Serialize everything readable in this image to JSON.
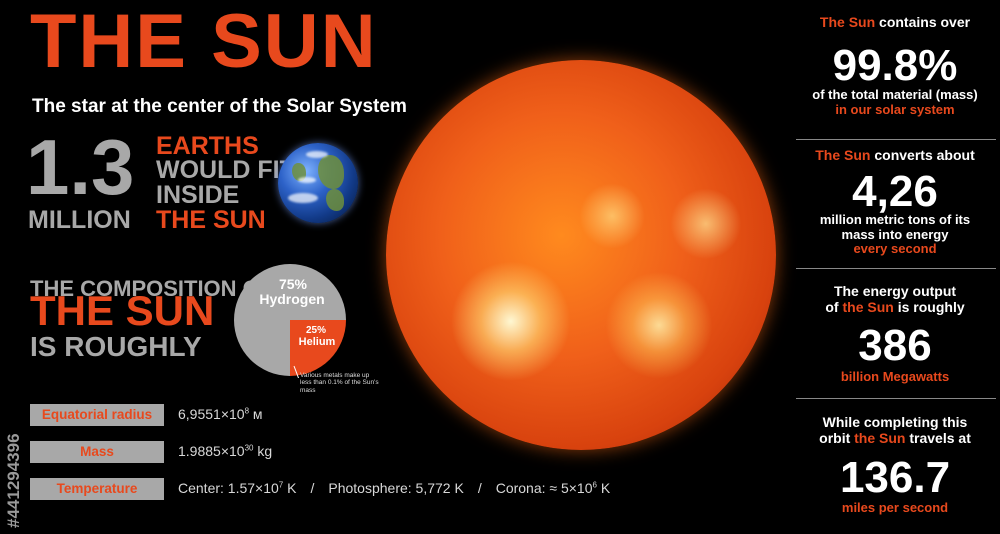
{
  "title": "THE SUN",
  "subtitle": "The star at the center of the Solar System",
  "earths": {
    "number": "1.3",
    "million": "MILLION",
    "line1": "EARTHS",
    "line2": "WOULD FIT",
    "line3": "INSIDE",
    "line4": "THE SUN"
  },
  "composition": {
    "line1": "THE COMPOSITION OF",
    "line2": "THE SUN",
    "line3": "IS ROUGHLY",
    "hydrogen_pct": "75%",
    "hydrogen_label": "Hydrogen",
    "helium_pct": "25%",
    "helium_label": "Helium",
    "hydrogen_fraction": 0.75,
    "helium_fraction": 0.25,
    "metals_note": "Various metals make up less than 0.1% of the Sun's mass"
  },
  "properties": [
    {
      "label": "Equatorial radius",
      "value_base": "6,9551×10",
      "value_exp": "8",
      "value_unit": " м"
    },
    {
      "label": "Mass",
      "value_base": "1.9885×10",
      "value_exp": "30",
      "value_unit": " kg"
    },
    {
      "label": "Temperature",
      "center_base": "Center: 1.57×10",
      "center_exp": "7",
      "center_unit": " K",
      "separator": "/",
      "photosphere": "Photosphere: 5,772 K",
      "corona_base": "Corona: ≈ 5×10",
      "corona_exp": "6",
      "corona_unit": " K"
    }
  ],
  "facts": {
    "mass_share": {
      "subject": "The Sun",
      "intro": " contains over",
      "value": "99.8%",
      "desc1": "of the total material (mass)",
      "desc2": "in our solar system"
    },
    "conversion": {
      "subject": "The Sun",
      "intro": " converts about",
      "value": "4,26",
      "desc1": "million metric tons of its",
      "desc2": "mass into energy",
      "desc3": "every second"
    },
    "output": {
      "intro1": "The energy output",
      "intro2a": "of ",
      "subject": "the Sun",
      "intro2b": " is roughly",
      "value": "386",
      "unit": "billion Megawatts"
    },
    "orbit": {
      "intro1": "While completing this",
      "intro2a": "orbit ",
      "subject": "the Sun",
      "intro2b": " travels at",
      "value": "136.7",
      "unit": "miles per second"
    }
  },
  "watermark_id": "#441294396",
  "colors": {
    "accent": "#e8491d",
    "gray": "#a8a8a8",
    "background": "#000000"
  }
}
